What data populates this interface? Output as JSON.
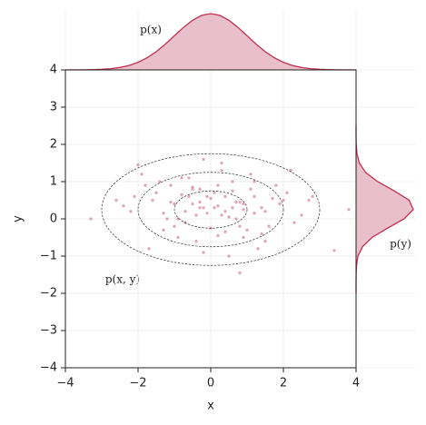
{
  "chart_data": {
    "type": "scatter",
    "x_label": "x",
    "y_label": "y",
    "xlim": [
      -4,
      4
    ],
    "ylim": [
      -4,
      4
    ],
    "xticks": [
      {
        "value": -4,
        "label": "−4"
      },
      {
        "value": -2,
        "label": "−2"
      },
      0,
      2,
      4
    ],
    "yticks": [
      {
        "value": -4,
        "label": "−4"
      },
      {
        "value": -3,
        "label": "−3"
      },
      {
        "value": -2,
        "label": "−2"
      },
      {
        "value": -1,
        "label": "−1"
      },
      0,
      1,
      2,
      3,
      4
    ],
    "grid": true,
    "series": [
      {
        "color": "#c9587c",
        "x": [
          -0.5,
          0.3,
          1.2,
          -1.1,
          0.8,
          -0.2,
          0.1,
          -0.7,
          1.5,
          -1.6,
          0.6,
          -0.3,
          0.9,
          -0.9,
          0.2,
          1.8,
          -1.3,
          0.4,
          -0.1,
          1.1,
          -2.2,
          0.7,
          -0.6,
          1.4,
          -0.4,
          0.0,
          2.1,
          -1.8,
          0.5,
          -1.0,
          1.3,
          -0.8,
          0.3,
          2.5,
          -2.6,
          0.9,
          -0.2,
          1.6,
          -1.4,
          0.1,
          -0.5,
          1.0,
          -1.2,
          0.6,
          2.8,
          -3.3,
          3.8,
          3.4,
          -2.0,
          2.2,
          0.8,
          -1.7,
          -0.3,
          0.4,
          1.9,
          -0.7,
          0.2,
          -1.5,
          1.2,
          -0.1,
          0.7,
          -2.4,
          1.7,
          -0.9,
          0.3,
          -0.4,
          2.3,
          -1.1,
          0.5,
          1.4,
          -0.6,
          0.0,
          -1.9,
          1.1,
          0.6,
          -0.2,
          2.0,
          -1.3,
          0.9,
          -0.8,
          0.2,
          1.5,
          -2.1,
          0.4,
          -0.5,
          1.2,
          -1.0,
          2.7,
          -0.3,
          0.8
        ],
        "values": [
          0.4,
          0.1,
          0.6,
          0.9,
          -0.2,
          0.3,
          0.7,
          -0.1,
          0.2,
          0.5,
          1.0,
          0.8,
          -0.5,
          0.0,
          0.35,
          0.9,
          -0.3,
          0.6,
          0.15,
          1.2,
          0.2,
          0.45,
          1.1,
          -0.4,
          -0.6,
          0.55,
          0.7,
          0.9,
          0.05,
          0.4,
          -0.8,
          0.65,
          1.3,
          0.1,
          0.5,
          0.25,
          -0.9,
          -0.2,
          1.0,
          0.3,
          0.8,
          -0.3,
          0.0,
          0.75,
          0.6,
          0.0,
          0.25,
          -0.85,
          1.45,
          1.3,
          -1.45,
          -0.8,
          0.45,
          -0.35,
          0.4,
          0.2,
          0.9,
          0.7,
          1.0,
          0.6,
          0.0,
          0.35,
          0.55,
          -0.5,
          1.5,
          0.1,
          -0.1,
          0.45,
          -1.0,
          0.3,
          0.6,
          -0.25,
          1.2,
          0.8,
          0.3,
          1.6,
          0.5,
          0.15,
          0.4,
          1.1,
          -0.45,
          -0.6,
          0.6,
          0.2,
          0.85,
          0.15,
          -0.2,
          0.5,
          0.3,
          0.45
        ]
      }
    ],
    "contours": {
      "color": "#333333",
      "center": [
        0,
        0.25
      ],
      "rx": [
        1,
        2,
        3
      ],
      "ry": [
        0.5,
        1,
        1.5
      ]
    },
    "marginal_x": {
      "color": "#c0304f",
      "fill": "#e6b8c5",
      "x": [
        -4,
        -3.75,
        -3.5,
        -3.25,
        -3,
        -2.75,
        -2.5,
        -2.25,
        -2,
        -1.75,
        -1.5,
        -1.25,
        -1,
        -0.75,
        -0.5,
        -0.25,
        0,
        0.25,
        0.5,
        0.75,
        1,
        1.25,
        1.5,
        1.75,
        2,
        2.25,
        2.5,
        2.75,
        3,
        3.25,
        3.5,
        3.75,
        4
      ],
      "values": [
        0.0001,
        0.0004,
        0.0009,
        0.002,
        0.0044,
        0.0091,
        0.0175,
        0.0317,
        0.054,
        0.0863,
        0.1295,
        0.1826,
        0.242,
        0.3011,
        0.3521,
        0.3867,
        0.3989,
        0.3867,
        0.3521,
        0.3011,
        0.242,
        0.1826,
        0.1295,
        0.0863,
        0.054,
        0.0317,
        0.0175,
        0.0091,
        0.0044,
        0.002,
        0.0009,
        0.0004,
        0.0001
      ]
    },
    "marginal_y": {
      "color": "#c0304f",
      "fill": "#e6b8c5",
      "y": [
        -2,
        -1.75,
        -1.5,
        -1.25,
        -1,
        -0.75,
        -0.5,
        -0.25,
        0,
        0.25,
        0.5,
        0.75,
        1,
        1.25,
        1.5,
        1.75,
        2,
        2.25,
        2.5
      ],
      "values": [
        0.0,
        0.0002,
        0.0012,
        0.0065,
        0.027,
        0.088,
        0.222,
        0.436,
        0.667,
        0.794,
        0.737,
        0.532,
        0.3,
        0.131,
        0.045,
        0.012,
        0.0025,
        0.0004,
        0.0
      ]
    },
    "annotations": [
      "p(x)",
      "p(y)",
      "p(x, y)"
    ]
  }
}
